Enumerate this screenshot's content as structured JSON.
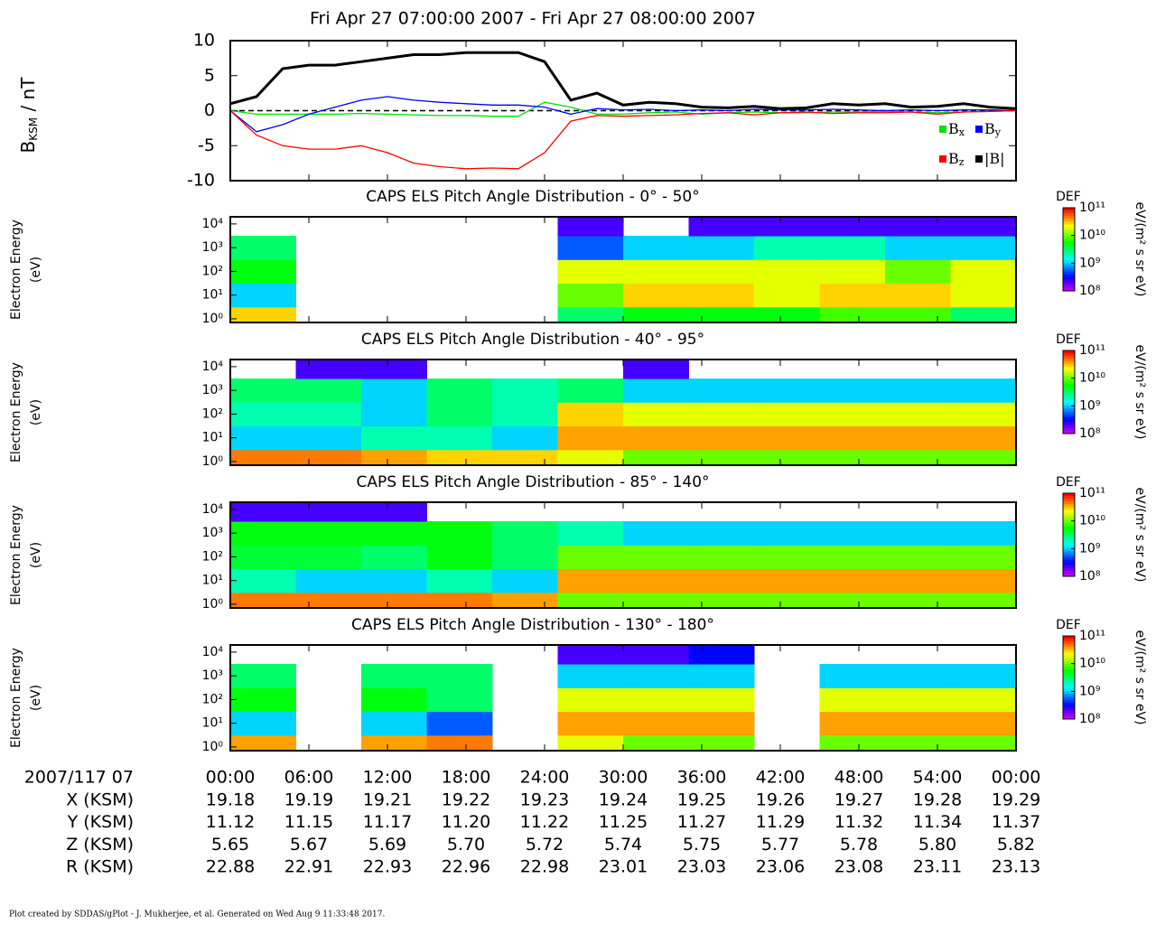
{
  "chart_data": [
    {
      "type": "line",
      "title": "Fri Apr 27 07:00:00 2007 - Fri Apr 27 08:00:00 2007",
      "ylabel": {
        "base": "B",
        "sub": "KSM",
        "unit": " / nT"
      },
      "x": [
        0,
        2,
        4,
        6,
        8,
        10,
        12,
        14,
        16,
        18,
        20,
        22,
        24,
        26,
        28,
        30,
        32,
        34,
        36,
        38,
        40,
        42,
        44,
        46,
        48,
        50,
        52,
        54,
        56,
        58,
        60
      ],
      "xlim": [
        0,
        60
      ],
      "xticks": [
        0,
        6,
        12,
        18,
        24,
        30,
        36,
        42,
        48,
        54,
        60
      ],
      "ylim": [
        -10,
        10
      ],
      "yticks": [
        -10,
        -5,
        0,
        5,
        10
      ],
      "series": [
        {
          "name": "B",
          "sub": "x",
          "color": "#00e000",
          "values": [
            0,
            -0.5,
            -0.5,
            -0.5,
            -0.5,
            -0.4,
            -0.5,
            -0.6,
            -0.7,
            -0.7,
            -0.8,
            -0.8,
            1.2,
            0.5,
            -0.5,
            -0.5,
            -0.3,
            -0.2,
            -0.5,
            -0.3,
            -0.2,
            -0.3,
            -0.3,
            -0.2,
            -0.2,
            -0.1,
            -0.2,
            -0.3,
            -0.2,
            -0.1,
            0
          ]
        },
        {
          "name": "B",
          "sub": "y",
          "color": "#0000ff",
          "values": [
            0,
            -3,
            -2,
            -0.5,
            0.5,
            1.5,
            2,
            1.5,
            1.2,
            1,
            0.8,
            0.8,
            0.5,
            -0.5,
            0.3,
            0.1,
            0.2,
            0,
            0.1,
            0,
            0.2,
            0.1,
            0.1,
            0.2,
            0.1,
            0,
            0.1,
            0,
            0.1,
            0.1,
            0
          ]
        },
        {
          "name": "B",
          "sub": "z",
          "color": "#ff0000",
          "values": [
            0,
            -3.5,
            -5,
            -5.5,
            -5.5,
            -5,
            -6,
            -7.5,
            -8,
            -8.3,
            -8.2,
            -8.3,
            -6,
            -1.5,
            -0.7,
            -0.8,
            -0.7,
            -0.6,
            -0.4,
            -0.3,
            -0.6,
            -0.3,
            -0.2,
            -0.4,
            -0.3,
            -0.3,
            -0.2,
            -0.5,
            -0.2,
            -0.1,
            0
          ]
        },
        {
          "name": "|B|",
          "color": "#000000",
          "values": [
            1,
            2,
            6,
            6.5,
            6.5,
            7,
            7.5,
            8,
            8,
            8.3,
            8.3,
            8.3,
            7,
            1.5,
            2.5,
            0.8,
            1.2,
            1,
            0.5,
            0.4,
            0.6,
            0.3,
            0.4,
            1,
            0.8,
            1,
            0.5,
            0.6,
            1,
            0.5,
            0.3
          ]
        }
      ]
    },
    {
      "type": "spectrogram",
      "title": "CAPS ELS Pitch Angle Distribution - 0° - 50°",
      "ylabel": [
        "Electron Energy",
        "(eV)"
      ],
      "zlabel": "DEF",
      "zunit": "eV/(m² s sr eV)",
      "xbins": [
        0,
        5,
        10,
        15,
        20,
        25,
        30,
        35,
        40,
        45,
        50,
        55,
        60
      ],
      "xlim": [
        0,
        60
      ],
      "xticks": [
        0,
        6,
        12,
        18,
        24,
        30,
        36,
        42,
        48,
        54,
        60
      ],
      "y": [
        1,
        10,
        100,
        1000,
        10000
      ],
      "ylim": [
        0.7,
        20000
      ],
      "ylog": true,
      "yticks": [
        {
          "value": 1,
          "label": "10⁰"
        },
        {
          "value": 10,
          "label": "10¹"
        },
        {
          "value": 100,
          "label": "10²"
        },
        {
          "value": 1000,
          "label": "10³"
        },
        {
          "value": 10000,
          "label": "10⁴"
        }
      ],
      "zlim": [
        100000000.0,
        100000000000.0
      ],
      "zticks": [
        {
          "value": 100000000.0,
          "label": "10⁸"
        },
        {
          "value": 1000000000.0,
          "label": "10⁹"
        },
        {
          "value": 10000000000.0,
          "label": "10¹⁰"
        },
        {
          "value": 100000000000.0,
          "label": "10¹¹"
        }
      ],
      "z": [
        [
          30000000000.0,
          null,
          null,
          null,
          null,
          3000000000.0,
          5000000000.0,
          5000000000.0,
          5000000000.0,
          8000000000.0,
          8000000000.0,
          3000000000.0
        ],
        [
          1000000000.0,
          null,
          null,
          null,
          null,
          10000000000.0,
          30000000000.0,
          30000000000.0,
          20000000000.0,
          30000000000.0,
          30000000000.0,
          20000000000.0
        ],
        [
          5000000000.0,
          null,
          null,
          null,
          null,
          20000000000.0,
          20000000000.0,
          20000000000.0,
          20000000000.0,
          20000000000.0,
          10000000000.0,
          20000000000.0
        ],
        [
          3000000000.0,
          null,
          null,
          null,
          null,
          500000000.0,
          1000000000.0,
          1000000000.0,
          2000000000.0,
          2000000000.0,
          1000000000.0,
          1000000000.0
        ],
        [
          null,
          null,
          null,
          null,
          null,
          200000000.0,
          null,
          200000000.0,
          200000000.0,
          200000000.0,
          200000000.0,
          200000000.0
        ]
      ]
    },
    {
      "type": "spectrogram",
      "title": "CAPS ELS Pitch Angle Distribution - 40° - 95°",
      "ylabel": [
        "Electron Energy",
        "(eV)"
      ],
      "zlabel": "DEF",
      "zunit": "eV/(m² s sr eV)",
      "xbins": [
        0,
        5,
        10,
        15,
        20,
        25,
        30,
        35,
        40,
        45,
        50,
        55,
        60
      ],
      "xlim": [
        0,
        60
      ],
      "xticks": [
        0,
        6,
        12,
        18,
        24,
        30,
        36,
        42,
        48,
        54,
        60
      ],
      "y": [
        1,
        10,
        100,
        1000,
        10000
      ],
      "ylim": [
        0.7,
        20000
      ],
      "ylog": true,
      "yticks": [
        {
          "value": 1,
          "label": "10⁰"
        },
        {
          "value": 10,
          "label": "10¹"
        },
        {
          "value": 100,
          "label": "10²"
        },
        {
          "value": 1000,
          "label": "10³"
        },
        {
          "value": 10000,
          "label": "10⁴"
        }
      ],
      "zlim": [
        100000000.0,
        100000000000.0
      ],
      "zticks": [
        {
          "value": 100000000.0,
          "label": "10⁸"
        },
        {
          "value": 1000000000.0,
          "label": "10⁹"
        },
        {
          "value": 10000000000.0,
          "label": "10¹⁰"
        },
        {
          "value": 100000000000.0,
          "label": "10¹¹"
        }
      ],
      "z": [
        [
          50000000000.0,
          50000000000.0,
          40000000000.0,
          30000000000.0,
          30000000000.0,
          20000000000.0,
          10000000000.0,
          10000000000.0,
          10000000000.0,
          10000000000.0,
          10000000000.0,
          10000000000.0
        ],
        [
          1000000000.0,
          1000000000.0,
          2000000000.0,
          2000000000.0,
          1000000000.0,
          40000000000.0,
          40000000000.0,
          40000000000.0,
          40000000000.0,
          40000000000.0,
          40000000000.0,
          40000000000.0
        ],
        [
          2000000000.0,
          2000000000.0,
          1000000000.0,
          3000000000.0,
          2000000000.0,
          30000000000.0,
          20000000000.0,
          20000000000.0,
          20000000000.0,
          20000000000.0,
          20000000000.0,
          20000000000.0
        ],
        [
          3000000000.0,
          3000000000.0,
          1000000000.0,
          3000000000.0,
          2000000000.0,
          3000000000.0,
          1000000000.0,
          1000000000.0,
          1000000000.0,
          1000000000.0,
          1000000000.0,
          1000000000.0
        ],
        [
          null,
          200000000.0,
          200000000.0,
          null,
          null,
          null,
          200000000.0,
          null,
          null,
          null,
          null,
          null
        ]
      ]
    },
    {
      "type": "spectrogram",
      "title": "CAPS ELS Pitch Angle Distribution - 85° - 140°",
      "ylabel": [
        "Electron Energy",
        "(eV)"
      ],
      "zlabel": "DEF",
      "zunit": "eV/(m² s sr eV)",
      "xbins": [
        0,
        5,
        10,
        15,
        20,
        25,
        30,
        35,
        40,
        45,
        50,
        55,
        60
      ],
      "xlim": [
        0,
        60
      ],
      "xticks": [
        0,
        6,
        12,
        18,
        24,
        30,
        36,
        42,
        48,
        54,
        60
      ],
      "y": [
        1,
        10,
        100,
        1000,
        10000
      ],
      "ylim": [
        0.7,
        20000
      ],
      "ylog": true,
      "yticks": [
        {
          "value": 1,
          "label": "10⁰"
        },
        {
          "value": 10,
          "label": "10¹"
        },
        {
          "value": 100,
          "label": "10²"
        },
        {
          "value": 1000,
          "label": "10³"
        },
        {
          "value": 10000,
          "label": "10⁴"
        }
      ],
      "zlim": [
        100000000.0,
        100000000000.0
      ],
      "zticks": [
        {
          "value": 100000000.0,
          "label": "10⁸"
        },
        {
          "value": 1000000000.0,
          "label": "10⁹"
        },
        {
          "value": 10000000000.0,
          "label": "10¹⁰"
        },
        {
          "value": 100000000000.0,
          "label": "10¹¹"
        }
      ],
      "z": [
        [
          50000000000.0,
          50000000000.0,
          50000000000.0,
          50000000000.0,
          40000000000.0,
          10000000000.0,
          10000000000.0,
          10000000000.0,
          10000000000.0,
          10000000000.0,
          10000000000.0,
          10000000000.0
        ],
        [
          2000000000.0,
          1000000000.0,
          1000000000.0,
          2000000000.0,
          1000000000.0,
          40000000000.0,
          40000000000.0,
          40000000000.0,
          40000000000.0,
          40000000000.0,
          40000000000.0,
          40000000000.0
        ],
        [
          4000000000.0,
          4000000000.0,
          3000000000.0,
          5000000000.0,
          3000000000.0,
          10000000000.0,
          10000000000.0,
          10000000000.0,
          10000000000.0,
          10000000000.0,
          10000000000.0,
          10000000000.0
        ],
        [
          5000000000.0,
          5000000000.0,
          5000000000.0,
          5000000000.0,
          3000000000.0,
          2000000000.0,
          1000000000.0,
          1000000000.0,
          1000000000.0,
          1000000000.0,
          1000000000.0,
          1000000000.0
        ],
        [
          200000000.0,
          200000000.0,
          200000000.0,
          null,
          null,
          null,
          null,
          null,
          null,
          null,
          null,
          null
        ]
      ]
    },
    {
      "type": "spectrogram",
      "title": "CAPS ELS Pitch Angle Distribution - 130° - 180°",
      "ylabel": [
        "Electron Energy",
        "(eV)"
      ],
      "zlabel": "DEF",
      "zunit": "eV/(m² s sr eV)",
      "xbins": [
        0,
        5,
        10,
        15,
        20,
        25,
        30,
        35,
        40,
        45,
        50,
        55,
        60
      ],
      "xlim": [
        0,
        60
      ],
      "xticks": [
        0,
        6,
        12,
        18,
        24,
        30,
        36,
        42,
        48,
        54,
        60
      ],
      "y": [
        1,
        10,
        100,
        1000,
        10000
      ],
      "ylim": [
        0.7,
        20000
      ],
      "ylog": true,
      "yticks": [
        {
          "value": 1,
          "label": "10⁰"
        },
        {
          "value": 10,
          "label": "10¹"
        },
        {
          "value": 100,
          "label": "10²"
        },
        {
          "value": 1000,
          "label": "10³"
        },
        {
          "value": 10000,
          "label": "10⁴"
        }
      ],
      "zlim": [
        100000000.0,
        100000000000.0
      ],
      "zticks": [
        {
          "value": 100000000.0,
          "label": "10⁸"
        },
        {
          "value": 1000000000.0,
          "label": "10⁹"
        },
        {
          "value": 10000000000.0,
          "label": "10¹⁰"
        },
        {
          "value": 100000000000.0,
          "label": "10¹¹"
        }
      ],
      "z": [
        [
          40000000000.0,
          null,
          40000000000.0,
          50000000000.0,
          null,
          20000000000.0,
          10000000000.0,
          10000000000.0,
          null,
          10000000000.0,
          10000000000.0,
          10000000000.0
        ],
        [
          1000000000.0,
          null,
          1000000000.0,
          500000000.0,
          null,
          40000000000.0,
          40000000000.0,
          40000000000.0,
          null,
          40000000000.0,
          40000000000.0,
          40000000000.0
        ],
        [
          5000000000.0,
          null,
          5000000000.0,
          3000000000.0,
          null,
          20000000000.0,
          20000000000.0,
          20000000000.0,
          null,
          20000000000.0,
          20000000000.0,
          20000000000.0
        ],
        [
          3000000000.0,
          null,
          3000000000.0,
          3000000000.0,
          null,
          1000000000.0,
          1000000000.0,
          1000000000.0,
          null,
          1000000000.0,
          1000000000.0,
          1000000000.0
        ],
        [
          null,
          null,
          null,
          null,
          null,
          200000000.0,
          200000000.0,
          300000000.0,
          null,
          null,
          null,
          null
        ]
      ]
    }
  ],
  "ephemeris": {
    "header": "2007/117 07",
    "times": [
      "00:00",
      "06:00",
      "12:00",
      "18:00",
      "24:00",
      "30:00",
      "36:00",
      "42:00",
      "48:00",
      "54:00",
      "00:00"
    ],
    "rows": [
      {
        "label": "X (KSM)",
        "values": [
          "19.18",
          "19.19",
          "19.21",
          "19.22",
          "19.23",
          "19.24",
          "19.25",
          "19.26",
          "19.27",
          "19.28",
          "19.29"
        ]
      },
      {
        "label": "Y (KSM)",
        "values": [
          "11.12",
          "11.15",
          "11.17",
          "11.20",
          "11.22",
          "11.25",
          "11.27",
          "11.29",
          "11.32",
          "11.34",
          "11.37"
        ]
      },
      {
        "label": "Z (KSM)",
        "values": [
          "5.65",
          "5.67",
          "5.69",
          "5.70",
          "5.72",
          "5.74",
          "5.75",
          "5.77",
          "5.78",
          "5.80",
          "5.82"
        ]
      },
      {
        "label": "R (KSM)",
        "values": [
          "22.88",
          "22.91",
          "22.93",
          "22.96",
          "22.98",
          "23.01",
          "23.03",
          "23.06",
          "23.08",
          "23.11",
          "23.13"
        ]
      }
    ]
  },
  "footer": "Plot created by SDDAS/gPlot - J. Mukherjee, et al.  Generated on Wed Aug 9 11:33:48 2017."
}
